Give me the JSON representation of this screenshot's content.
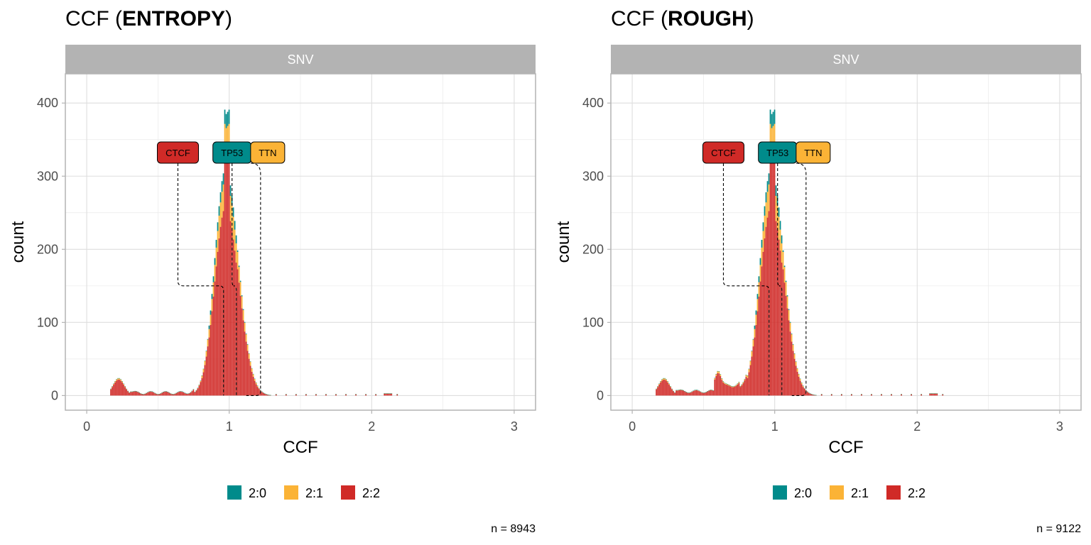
{
  "chart_data": [
    {
      "type": "bar",
      "title_prefix": "CCF (",
      "title_bold": "ENTROPY",
      "title_suffix": ")",
      "facet": "SNV",
      "xlabel": "CCF",
      "ylabel": "count",
      "xlim": [
        -0.15,
        3.15
      ],
      "ylim": [
        -20,
        440
      ],
      "xticks": [
        0,
        1,
        2,
        3
      ],
      "yticks": [
        0,
        100,
        200,
        300,
        400
      ],
      "caption": "n = 8943",
      "legend": [
        {
          "key": "2:0",
          "color": "#008b8b"
        },
        {
          "key": "2:1",
          "color": "#fbb336"
        },
        {
          "key": "2:2",
          "color": "#d02a27"
        }
      ],
      "annotations": [
        {
          "label": "CTCF",
          "x": 0.96,
          "color": "#d02a27"
        },
        {
          "label": "TP53",
          "x": 1.05,
          "color": "#008b8b"
        },
        {
          "label": "TTN",
          "x": 1.22,
          "color": "#fbb336"
        }
      ],
      "profile": "entropy"
    },
    {
      "type": "bar",
      "title_prefix": "CCF (",
      "title_bold": "ROUGH",
      "title_suffix": ")",
      "facet": "SNV",
      "xlabel": "CCF",
      "ylabel": "count",
      "xlim": [
        -0.15,
        3.15
      ],
      "ylim": [
        -20,
        440
      ],
      "xticks": [
        0,
        1,
        2,
        3
      ],
      "yticks": [
        0,
        100,
        200,
        300,
        400
      ],
      "caption": "n = 9122",
      "legend": [
        {
          "key": "2:0",
          "color": "#008b8b"
        },
        {
          "key": "2:1",
          "color": "#fbb336"
        },
        {
          "key": "2:2",
          "color": "#d02a27"
        }
      ],
      "annotations": [
        {
          "label": "CTCF",
          "x": 0.96,
          "color": "#d02a27"
        },
        {
          "label": "TP53",
          "x": 1.05,
          "color": "#008b8b"
        },
        {
          "label": "TTN",
          "x": 1.22,
          "color": "#fbb336"
        }
      ],
      "profile": "rough"
    }
  ]
}
